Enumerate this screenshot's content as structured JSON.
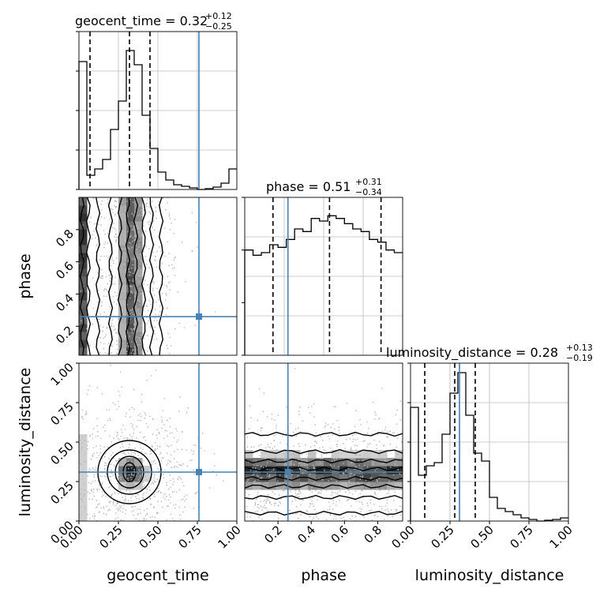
{
  "chart_data": {
    "type": "corner",
    "parameters": [
      "geocent_time",
      "phase",
      "luminosity_distance"
    ],
    "truths": {
      "geocent_time": 0.76,
      "phase": 0.26,
      "luminosity_distance": 0.31
    },
    "histograms": [
      {
        "param": "geocent_time",
        "title": {
          "prefix": "geocent_time = ",
          "median": "0.32",
          "plus": "+0.12",
          "minus": "−0.25"
        },
        "quantiles": [
          0.07,
          0.32,
          0.45
        ],
        "bins": [
          0,
          0.05,
          0.1,
          0.15,
          0.2,
          0.25,
          0.3,
          0.35,
          0.4,
          0.45,
          0.5,
          0.55,
          0.6,
          0.65,
          0.7,
          0.75,
          0.8,
          0.85,
          0.9,
          0.95,
          1.0
        ],
        "values": [
          0.81,
          0.09,
          0.13,
          0.19,
          0.38,
          0.56,
          0.88,
          0.79,
          0.47,
          0.26,
          0.11,
          0.06,
          0.03,
          0.02,
          0.01,
          0.0,
          0.005,
          0.015,
          0.04,
          0.13
        ],
        "ylim": [
          0,
          1.0
        ],
        "yticks": [
          0.0,
          0.25,
          0.5,
          0.75,
          1.0
        ],
        "xlim": [
          0,
          1
        ]
      },
      {
        "param": "phase",
        "title": {
          "prefix": "phase = ",
          "median": "0.51",
          "plus": "+0.31",
          "minus": "−0.34"
        },
        "quantiles": [
          0.17,
          0.51,
          0.82
        ],
        "bins": [
          0.0,
          0.05,
          0.1,
          0.15,
          0.2,
          0.25,
          0.3,
          0.35,
          0.4,
          0.45,
          0.5,
          0.55,
          0.6,
          0.65,
          0.7,
          0.75,
          0.8,
          0.85,
          0.9,
          0.95
        ],
        "values": [
          0.4,
          0.38,
          0.39,
          0.42,
          0.41,
          0.44,
          0.48,
          0.47,
          0.52,
          0.51,
          0.53,
          0.52,
          0.5,
          0.48,
          0.47,
          0.44,
          0.43,
          0.4,
          0.39
        ],
        "ylim": [
          0,
          0.6
        ],
        "yticks": [
          0.0,
          0.2,
          0.4,
          0.6
        ],
        "xlim": [
          0,
          0.95
        ]
      },
      {
        "param": "luminosity_distance",
        "title": {
          "prefix": "luminosity_distance = ",
          "median": "0.28",
          "plus": "+0.13",
          "minus": "−0.19"
        },
        "quantiles": [
          0.09,
          0.28,
          0.41
        ],
        "bins": [
          0,
          0.05,
          0.1,
          0.15,
          0.2,
          0.25,
          0.3,
          0.35,
          0.4,
          0.45,
          0.5,
          0.55,
          0.6,
          0.65,
          0.7,
          0.75,
          0.8,
          0.85,
          0.9,
          0.95,
          1.0
        ],
        "values": [
          0.72,
          0.29,
          0.35,
          0.37,
          0.55,
          0.81,
          0.94,
          0.67,
          0.43,
          0.38,
          0.15,
          0.08,
          0.06,
          0.04,
          0.02,
          0.01,
          0.0,
          0.005,
          0.01,
          0.02
        ],
        "ylim": [
          0,
          1.0
        ],
        "yticks": [
          0.0,
          0.25,
          0.5,
          0.75,
          1.0
        ],
        "xlim": [
          0,
          1
        ]
      }
    ],
    "panels_2d": [
      {
        "x": "geocent_time",
        "y": "phase",
        "xlim": [
          0,
          1
        ],
        "ylim": [
          0.02,
          1.0
        ],
        "truth": [
          0.76,
          0.26
        ],
        "contour_x_levels": [
          0.02,
          0.06,
          0.12,
          0.2,
          0.26,
          0.31,
          0.36,
          0.41,
          0.46,
          0.52
        ]
      },
      {
        "x": "geocent_time",
        "y": "luminosity_distance",
        "xlim": [
          0,
          1
        ],
        "ylim": [
          0,
          1
        ],
        "truth": [
          0.76,
          0.31
        ],
        "contour_center": [
          0.32,
          0.31
        ],
        "contour_radii": [
          [
            0.04,
            0.06
          ],
          [
            0.09,
            0.1
          ],
          [
            0.14,
            0.14
          ],
          [
            0.2,
            0.2
          ]
        ]
      },
      {
        "x": "phase",
        "y": "luminosity_distance",
        "xlim": [
          0,
          0.95
        ],
        "ylim": [
          0,
          1
        ],
        "truth": [
          0.26,
          0.31
        ],
        "contour_y_levels": [
          0.05,
          0.15,
          0.22,
          0.27,
          0.33,
          0.38,
          0.44,
          0.55
        ]
      }
    ],
    "tick_labels": {
      "geocent_time": [
        "0.00",
        "0.25",
        "0.50",
        "0.75",
        "1.00"
      ],
      "phase_x": [
        "0.2",
        "0.4",
        "0.6",
        "0.8"
      ],
      "phase_y": [
        "0.2",
        "0.4",
        "0.6",
        "0.8"
      ],
      "luminosity_distance": [
        "0.00",
        "0.25",
        "0.50",
        "0.75",
        "1.00"
      ]
    },
    "axis_labels": {
      "x": [
        "geocent_time",
        "phase",
        "luminosity_distance"
      ],
      "y": [
        "phase",
        "luminosity_distance"
      ]
    },
    "truth_color": "#4682b4",
    "grid": true
  }
}
